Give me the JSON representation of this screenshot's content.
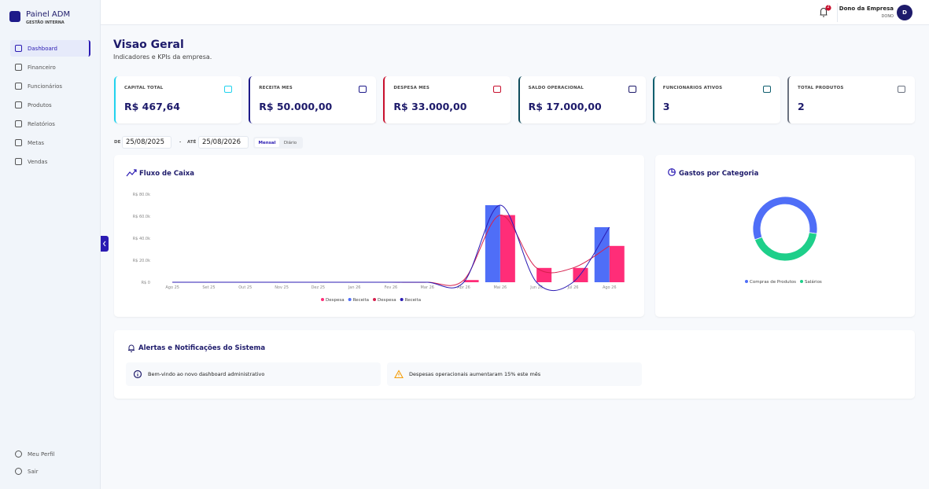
{
  "sidebar": {
    "brand": "Painel ADM",
    "subtitle": "GESTÃO INTERNA",
    "nav": [
      "Dashboard",
      "Financeiro",
      "Funcionários",
      "Produtos",
      "Relatórios",
      "Metas",
      "Vendas"
    ],
    "footer": [
      "Meu Perfil",
      "Sair"
    ]
  },
  "topbar": {
    "notifications": "2",
    "user_name": "Dono da Empresa",
    "user_role": "DONO",
    "avatar": "D"
  },
  "header": {
    "title": "Visao Geral",
    "subtitle": "Indicadores e KPIs da empresa."
  },
  "kpis": [
    {
      "label": "CAPITAL TOTAL",
      "value": "R$ 467,64",
      "color": "#22d3ee"
    },
    {
      "label": "RECEITA MES",
      "value": "R$ 50.000,00",
      "color": "#1e1b8a"
    },
    {
      "label": "DESPESA MES",
      "value": "R$ 33.000,00",
      "color": "#c8102e"
    },
    {
      "label": "SALDO OPERACIONAL",
      "value": "R$ 17.000,00",
      "color": "#0f4c5c"
    },
    {
      "label": "FUNCIONARIOS ATIVOS",
      "value": "3",
      "color": "#0f5e6e"
    },
    {
      "label": "TOTAL PRODUTOS",
      "value": "2",
      "color": "#6b7280"
    }
  ],
  "filters": {
    "from_label": "DE",
    "from": "25/08/2025",
    "separator": "-",
    "to_label": "ATÉ",
    "to": "25/08/2026",
    "modes": [
      "Mensal",
      "Diário"
    ]
  },
  "cash_flow": {
    "type": "bar",
    "title": "Fluxo de Caixa",
    "categories": [
      "Ago 25",
      "Set 25",
      "Out 25",
      "Nov 25",
      "Dez 25",
      "Jan 26",
      "Fev 26",
      "Mar 26",
      "Abr 26",
      "Mai 26",
      "Jun 26",
      "Jul 26",
      "Ago 26"
    ],
    "series": [
      {
        "name": "Despesa",
        "kind": "bar",
        "color": "#ff2d78",
        "values": [
          0,
          0,
          0,
          0,
          0,
          0,
          0,
          0,
          2000,
          61000,
          13000,
          13000,
          33000
        ]
      },
      {
        "name": "Receita",
        "kind": "bar",
        "color": "#4f6ef7",
        "values": [
          0,
          0,
          0,
          0,
          0,
          0,
          0,
          0,
          0,
          70000,
          0,
          0,
          50000
        ]
      },
      {
        "name": "Despesa",
        "kind": "line",
        "color": "#d6204e",
        "values": [
          0,
          0,
          0,
          0,
          0,
          0,
          0,
          0,
          2000,
          61000,
          13000,
          13000,
          33000
        ]
      },
      {
        "name": "Receita",
        "kind": "line",
        "color": "#2b1bb3",
        "values": [
          0,
          0,
          0,
          0,
          0,
          0,
          0,
          0,
          0,
          70000,
          0,
          0,
          50000
        ]
      }
    ],
    "ylim": [
      0,
      80000
    ],
    "yticks": [
      {
        "value": 0,
        "label": "R$ 0"
      },
      {
        "value": 20000,
        "label": "R$ 20.0k"
      },
      {
        "value": 40000,
        "label": "R$ 40.0k"
      },
      {
        "value": 60000,
        "label": "R$ 60.0k"
      },
      {
        "value": 80000,
        "label": "R$ 80.0k"
      }
    ]
  },
  "expenses_by_category": {
    "type": "donut",
    "title": "Gastos por Categoria",
    "categories": [
      "Compras de Produtos",
      "Salários"
    ],
    "values": [
      58,
      42
    ],
    "colors": [
      "#4f6ef7",
      "#1ecf8a"
    ]
  },
  "alerts": {
    "title": "Alertas e Notificações do Sistema",
    "items": [
      "Bem-vindo ao novo dashboard administrativo",
      "Despesas operacionais aumentaram 15% este mês"
    ]
  }
}
